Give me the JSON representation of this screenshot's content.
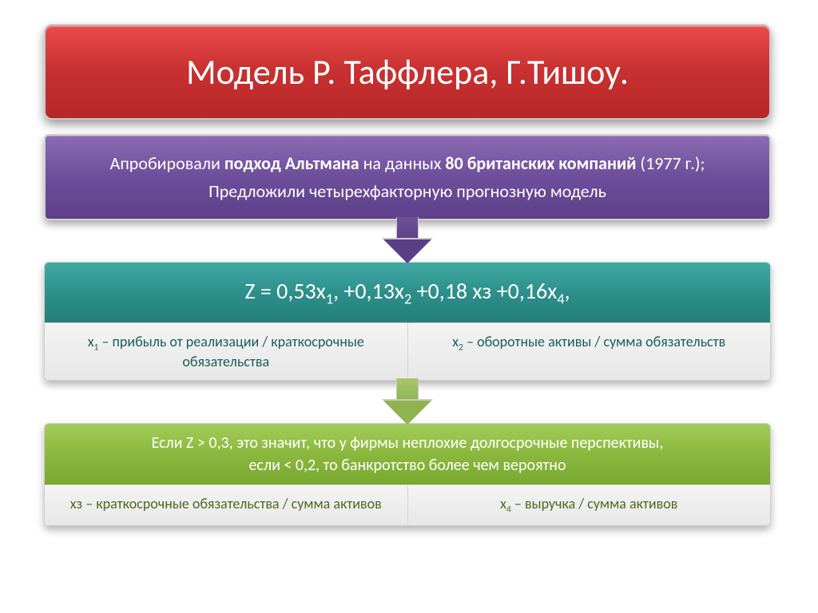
{
  "title": "Модель Р. Таффлера, Г.Тишоу.",
  "purple": {
    "line1_a": "Апробировали ",
    "line1_b": "подход Альтмана",
    "line1_c": " на данных ",
    "line1_d": "80 британских компаний",
    "line1_e": " (1977 г.);",
    "line2": "Предложили четырехфакторную прогнозную модель"
  },
  "teal": {
    "formula_prefix": "Z = 0,53x",
    "formula_mid1": ", +0,13x",
    "formula_mid2": " +0,18 x",
    "formula_x3": "з",
    "formula_mid3": " +0,16x",
    "formula_suffix": ",",
    "x1_label": "x",
    "x1_sub": "1",
    "x1_text": " – прибыль от реализации / краткосрочные обязательства",
    "x2_label": "x",
    "x2_sub": "2",
    "x2_text": " – оборотные активы / сумма обязательств"
  },
  "green": {
    "cond1": "Если Z > 0,3, это значит, что у фирмы неплохие долгосрочные перспективы,",
    "cond2": "если < 0,2, то банкротство более чем вероятно",
    "x3_full": "xз – краткосрочные обязательства / сумма активов",
    "x4_label": "x",
    "x4_sub": "4",
    "x4_text": " – выручка / сумма активов"
  },
  "colors": {
    "title_bg_top": "#e94b4b",
    "title_bg_bot": "#b82828",
    "purple_top": "#8b6bb3",
    "purple_bot": "#5d3f8a",
    "teal_top": "#3fa9a4",
    "teal_bot": "#257f7a",
    "green_top": "#a3cc58",
    "green_bot": "#79a830",
    "cell_bg": "#e7e7e7",
    "border": "#cfcfcf"
  }
}
